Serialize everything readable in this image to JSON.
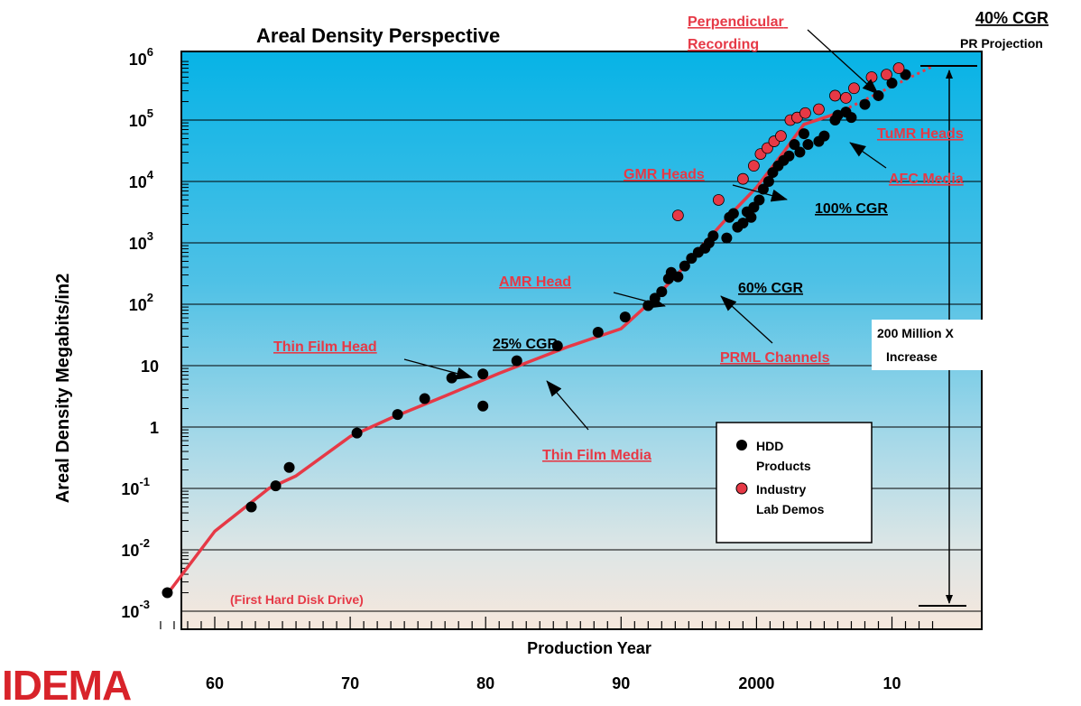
{
  "chart_data": {
    "type": "scatter",
    "title": "Areal Density Perspective",
    "xlabel": "Production Year",
    "ylabel": "Areal Density Megabits/in2",
    "y_scale": "log",
    "xlim": [
      1955,
      2015
    ],
    "ylim": [
      0.001,
      1000000
    ],
    "grid": "horizontal",
    "x_ticks": [
      {
        "value": 1960,
        "label": "60"
      },
      {
        "value": 1970,
        "label": "70"
      },
      {
        "value": 1980,
        "label": "80"
      },
      {
        "value": 1990,
        "label": "90"
      },
      {
        "value": 2000,
        "label": "2000"
      },
      {
        "value": 2010,
        "label": "10"
      }
    ],
    "y_ticks": [
      {
        "value": 0.001,
        "base": "10",
        "exp": "-3"
      },
      {
        "value": 0.01,
        "base": "10",
        "exp": "-2"
      },
      {
        "value": 0.1,
        "base": "10",
        "exp": "-1"
      },
      {
        "value": 1,
        "base": "1",
        "exp": ""
      },
      {
        "value": 10,
        "base": "10",
        "exp": ""
      },
      {
        "value": 100,
        "base": "10",
        "exp": "2"
      },
      {
        "value": 1000,
        "base": "10",
        "exp": "3"
      },
      {
        "value": 10000,
        "base": "10",
        "exp": "4"
      },
      {
        "value": 100000,
        "base": "10",
        "exp": "5"
      },
      {
        "value": 1000000,
        "base": "10",
        "exp": "6"
      }
    ],
    "series": [
      {
        "name": "HDD Products",
        "color": "#000000",
        "points": [
          [
            1956.5,
            0.002
          ],
          [
            1962.7,
            0.05
          ],
          [
            1964.5,
            0.11
          ],
          [
            1965.5,
            0.22
          ],
          [
            1970.5,
            0.8
          ],
          [
            1973.5,
            1.6
          ],
          [
            1975.5,
            2.9
          ],
          [
            1977.5,
            6.3
          ],
          [
            1979.8,
            7.3
          ],
          [
            1979.8,
            2.2
          ],
          [
            1982.3,
            12
          ],
          [
            1985.3,
            21
          ],
          [
            1988.3,
            35
          ],
          [
            1990.3,
            62
          ],
          [
            1992.0,
            95
          ],
          [
            1992.5,
            125
          ],
          [
            1993.0,
            160
          ],
          [
            1993.5,
            260
          ],
          [
            1993.7,
            330
          ],
          [
            1994.2,
            280
          ],
          [
            1994.7,
            420
          ],
          [
            1995.2,
            560
          ],
          [
            1995.7,
            700
          ],
          [
            1996.2,
            820
          ],
          [
            1996.5,
            1000
          ],
          [
            1996.8,
            1300
          ],
          [
            1997.8,
            1200
          ],
          [
            1998.0,
            2600
          ],
          [
            1998.3,
            3000
          ],
          [
            1998.6,
            1800
          ],
          [
            1999.0,
            2100
          ],
          [
            1999.3,
            3200
          ],
          [
            1999.6,
            2600
          ],
          [
            1999.8,
            3800
          ],
          [
            2000.2,
            5000
          ],
          [
            2000.5,
            7500
          ],
          [
            2000.9,
            10000
          ],
          [
            2001.2,
            14000
          ],
          [
            2001.6,
            18000
          ],
          [
            2002.0,
            22000
          ],
          [
            2002.4,
            26000
          ],
          [
            2002.8,
            40000
          ],
          [
            2003.2,
            30000
          ],
          [
            2003.5,
            60000
          ],
          [
            2003.8,
            40000
          ],
          [
            2004.6,
            45000
          ],
          [
            2005.0,
            55000
          ],
          [
            2005.8,
            100000
          ],
          [
            2006.0,
            120000
          ],
          [
            2006.6,
            135000
          ],
          [
            2007.0,
            110000
          ],
          [
            2008.0,
            180000
          ],
          [
            2009.0,
            250000
          ],
          [
            2010.0,
            400000
          ],
          [
            2011.0,
            550000
          ]
        ]
      },
      {
        "name": "Industry Lab Demos",
        "color": "#e63946",
        "points": [
          [
            1994.2,
            2800
          ],
          [
            1997.2,
            5000
          ],
          [
            1999.0,
            11000
          ],
          [
            1999.8,
            18000
          ],
          [
            2000.3,
            28000
          ],
          [
            2000.8,
            35000
          ],
          [
            2001.3,
            45000
          ],
          [
            2001.8,
            55000
          ],
          [
            2002.5,
            100000
          ],
          [
            2003.0,
            110000
          ],
          [
            2003.6,
            130000
          ],
          [
            2004.6,
            150000
          ],
          [
            2005.8,
            250000
          ],
          [
            2006.6,
            230000
          ],
          [
            2007.2,
            330000
          ],
          [
            2008.5,
            500000
          ],
          [
            2009.6,
            550000
          ],
          [
            2010.5,
            700000
          ]
        ]
      }
    ],
    "trend_line": [
      [
        1956.5,
        0.0019
      ],
      [
        1960,
        0.02
      ],
      [
        1964,
        0.1
      ],
      [
        1966,
        0.16
      ],
      [
        1970,
        0.7
      ],
      [
        1973,
        1.4
      ],
      [
        1977,
        3.2
      ],
      [
        1981,
        7.5
      ],
      [
        1986,
        20
      ],
      [
        1990,
        40
      ],
      [
        1992,
        100
      ],
      [
        1994,
        280
      ],
      [
        1996,
        900
      ],
      [
        1998,
        2800
      ],
      [
        2000,
        8000
      ],
      [
        2002,
        30000
      ],
      [
        2003.5,
        85000
      ],
      [
        2006,
        130000
      ]
    ],
    "projection_line": [
      [
        2006,
        130000
      ],
      [
        2013,
        750000
      ]
    ],
    "annotations": [
      {
        "text": "(First Hard Disk Drive)",
        "color": "#e63946",
        "underline": false
      },
      {
        "text": "Thin Film Head",
        "color": "#e63946",
        "underline": true
      },
      {
        "text": "25% CGR",
        "color": "#000000",
        "underline": true
      },
      {
        "text": "Thin Film Media",
        "color": "#e63946",
        "underline": true
      },
      {
        "text": "AMR Head",
        "color": "#e63946",
        "underline": true
      },
      {
        "text": "60% CGR",
        "color": "#000000",
        "underline": true
      },
      {
        "text": "PRML Channels",
        "color": "#e63946",
        "underline": true
      },
      {
        "text": "GMR Heads",
        "color": "#e63946",
        "underline": true
      },
      {
        "text": "100% CGR",
        "color": "#000000",
        "underline": true
      },
      {
        "text": "AFC Media",
        "color": "#e63946",
        "underline": true
      },
      {
        "text": "TuMR Heads",
        "color": "#e63946",
        "underline": true
      },
      {
        "text": "Perpendicular Recording",
        "color": "#e63946",
        "underline": true
      },
      {
        "text": "40% CGR",
        "color": "#000000",
        "underline": true
      },
      {
        "text": "PR Projection",
        "color": "#000000",
        "underline": false
      }
    ],
    "increase_box": {
      "line1": "200 Million X",
      "line2": "Increase"
    },
    "legend": {
      "placement": "bottom-right",
      "entries": [
        "HDD Products",
        "Industry Lab Demos"
      ]
    }
  },
  "logo": {
    "text": "IDEMA",
    "color": "#d8232a"
  }
}
